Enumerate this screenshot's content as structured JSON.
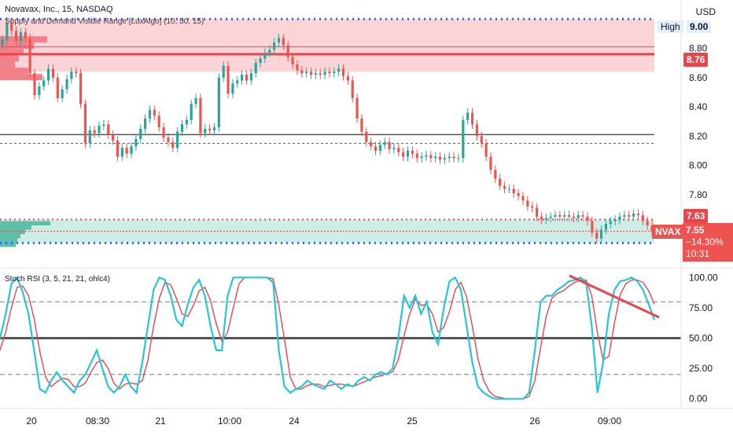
{
  "header": {
    "symbol_line": "Novavax, Inc., 15, NASDAQ",
    "indicator_line": "Supply and Demand Visible Range [LuxAlgo] (10, 50, 15)",
    "currency": "USD"
  },
  "price_axis": {
    "high_tag": "High",
    "high_value": "9.00",
    "ticks": [
      "8.80",
      "8.60",
      "8.40",
      "8.20",
      "8.00",
      "7.80"
    ],
    "tag_876": "8.76",
    "tag_763": "7.63",
    "last": {
      "symbol": "NVAX",
      "price": "7.55",
      "change": "−14.30%",
      "countdown": "10:31"
    }
  },
  "rsi": {
    "title": "Stoch RSI (3, 5, 21, 21, ohlc4)",
    "ticks": [
      "100.00",
      "75.00",
      "50.00",
      "25.00",
      "0.00"
    ]
  },
  "time_axis": {
    "labels": [
      "20",
      "08:30",
      "21",
      "10:00",
      "24",
      "25",
      "26",
      "09:00"
    ]
  },
  "colors": {
    "up": "#26a69a",
    "down": "#ef5350",
    "supply_zone": "#fbd4d7",
    "demand_zone": "#cdeee7",
    "blue_dot": "#2962ff",
    "rsi_k": "#26c6da",
    "rsi_d": "#e8454c"
  },
  "chart_data": [
    {
      "type": "candlestick",
      "title": "Novavax, Inc., 15, NASDAQ",
      "ylim": [
        7.3,
        9.13
      ],
      "y_ticks": [
        9.0,
        8.8,
        8.6,
        8.4,
        8.2,
        8.0,
        7.8
      ],
      "levels": {
        "high": 9.0,
        "supply_line": 8.76,
        "mid_line": 8.21,
        "mid_dashed": 8.15,
        "demand_line": 7.63,
        "low_blue": 7.47,
        "last_price": 7.55
      },
      "zones": {
        "supply": [
          8.64,
          9.0
        ],
        "demand": [
          7.47,
          7.63
        ]
      },
      "x_labels": [
        "20",
        "08:30",
        "21",
        "10:00",
        "24",
        "25",
        "26",
        "09:00"
      ],
      "close": [
        8.86,
        8.97,
        8.92,
        8.85,
        8.91,
        8.87,
        8.63,
        8.48,
        8.54,
        8.58,
        8.66,
        8.6,
        8.46,
        8.52,
        8.59,
        8.64,
        8.63,
        8.42,
        8.15,
        8.24,
        8.22,
        8.27,
        8.28,
        8.21,
        8.17,
        8.06,
        8.12,
        8.08,
        8.13,
        8.18,
        8.25,
        8.32,
        8.38,
        8.34,
        8.26,
        8.19,
        8.16,
        8.12,
        8.23,
        8.28,
        8.31,
        8.42,
        8.46,
        8.22,
        8.25,
        8.24,
        8.26,
        8.6,
        8.68,
        8.49,
        8.56,
        8.58,
        8.62,
        8.58,
        8.63,
        8.7,
        8.73,
        8.77,
        8.79,
        8.84,
        8.87,
        8.82,
        8.74,
        8.69,
        8.65,
        8.63,
        8.64,
        8.62,
        8.63,
        8.62,
        8.64,
        8.63,
        8.64,
        8.66,
        8.61,
        8.58,
        8.46,
        8.32,
        8.23,
        8.16,
        8.13,
        8.1,
        8.14,
        8.16,
        8.11,
        8.12,
        8.09,
        8.06,
        8.1,
        8.08,
        8.05,
        8.06,
        8.07,
        8.05,
        8.06,
        8.04,
        8.05,
        8.06,
        8.05,
        8.05,
        8.31,
        8.36,
        8.28,
        8.2,
        8.15,
        8.06,
        7.97,
        7.91,
        7.86,
        7.84,
        7.84,
        7.81,
        7.79,
        7.76,
        7.72,
        7.71,
        7.65,
        7.63,
        7.64,
        7.65,
        7.66,
        7.65,
        7.66,
        7.65,
        7.64,
        7.66,
        7.65,
        7.62,
        7.54,
        7.5,
        7.56,
        7.6,
        7.62,
        7.63,
        7.65,
        7.66,
        7.65,
        7.67,
        7.66,
        7.62,
        7.59,
        7.55
      ]
    },
    {
      "type": "line",
      "title": "Stoch RSI (3, 5, 21, 21, ohlc4)",
      "ylim": [
        -8,
        108
      ],
      "y_ticks": [
        100,
        75,
        50,
        25,
        0
      ],
      "levels": {
        "upper": 80,
        "mid": 50,
        "lower": 20
      },
      "series": [
        {
          "key": "k",
          "values": [
            50,
            70,
            95,
            100,
            88,
            70,
            40,
            8,
            5,
            15,
            22,
            15,
            10,
            5,
            15,
            20,
            30,
            40,
            25,
            10,
            5,
            10,
            20,
            10,
            5,
            30,
            60,
            90,
            100,
            98,
            85,
            65,
            60,
            78,
            92,
            98,
            85,
            60,
            40,
            40,
            85,
            100,
            100,
            100,
            100,
            100,
            100,
            100,
            96,
            40,
            10,
            5,
            8,
            10,
            15,
            12,
            10,
            8,
            15,
            12,
            8,
            12,
            10,
            15,
            18,
            15,
            20,
            22,
            20,
            25,
            50,
            85,
            75,
            85,
            70,
            80,
            55,
            45,
            75,
            97,
            100,
            90,
            60,
            30,
            10,
            5,
            2,
            0,
            0,
            0,
            0,
            0,
            0,
            5,
            40,
            80,
            85,
            85,
            90,
            93,
            97,
            98,
            100,
            96,
            60,
            5,
            30,
            70,
            90,
            97,
            98,
            100,
            97,
            90,
            78,
            65
          ]
        },
        {
          "key": "d",
          "values": [
            40,
            55,
            75,
            92,
            93,
            85,
            66,
            39,
            18,
            10,
            14,
            17,
            16,
            10,
            10,
            13,
            22,
            30,
            32,
            25,
            13,
            8,
            12,
            13,
            12,
            15,
            32,
            60,
            83,
            96,
            94,
            83,
            70,
            68,
            77,
            89,
            92,
            81,
            62,
            47,
            55,
            75,
            95,
            100,
            100,
            100,
            100,
            100,
            99,
            77,
            49,
            18,
            8,
            8,
            11,
            12,
            12,
            10,
            11,
            12,
            12,
            11,
            10,
            12,
            14,
            16,
            18,
            19,
            21,
            22,
            32,
            52,
            70,
            82,
            77,
            78,
            70,
            55,
            59,
            72,
            90,
            96,
            84,
            60,
            33,
            15,
            6,
            2,
            1,
            0,
            0,
            0,
            0,
            2,
            15,
            42,
            68,
            83,
            87,
            89,
            93,
            96,
            98,
            98,
            85,
            54,
            32,
            35,
            63,
            86,
            95,
            98,
            98,
            96,
            89,
            78
          ]
        }
      ]
    }
  ]
}
